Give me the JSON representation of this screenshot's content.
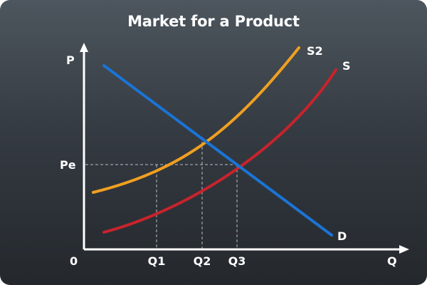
{
  "title": "Market for a Product",
  "axes": {
    "y_label": "P",
    "x_label": "Q",
    "origin_label": "0"
  },
  "price_labels": {
    "pe": "Pe"
  },
  "quantity_labels": {
    "q1": "Q1",
    "q2": "Q2",
    "q3": "Q3"
  },
  "curves": {
    "demand": {
      "label": "D",
      "color": "#1a74d6"
    },
    "supply": {
      "label": "S",
      "color": "#c8232c"
    },
    "supply2": {
      "label": "S2",
      "color": "#f0a020"
    }
  },
  "colors": {
    "axis": "#ffffff",
    "guide": "#b9bec3"
  }
}
